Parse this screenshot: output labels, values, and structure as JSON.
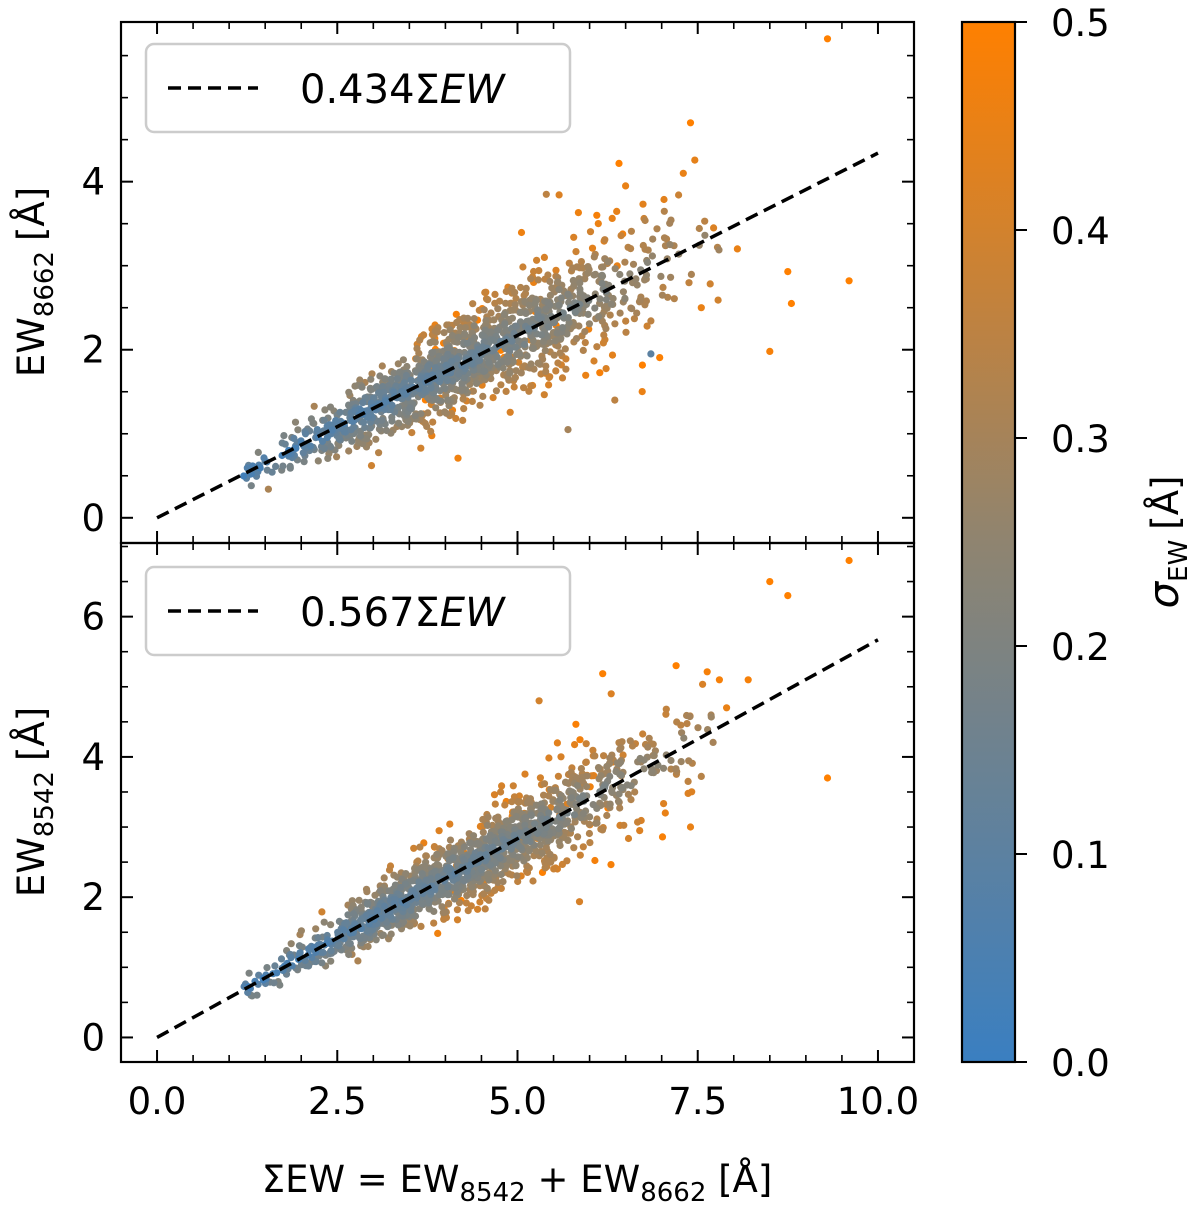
{
  "chart_data": [
    {
      "type": "scatter",
      "panel": "top",
      "ylabel": {
        "main": "EW",
        "sub": "8662",
        "unit": "[Å]"
      },
      "xlim": [
        -0.5,
        10.5
      ],
      "ylim": [
        -0.3,
        5.9
      ],
      "yticks": [
        0,
        2,
        4
      ],
      "ytick_labels": [
        "0",
        "2",
        "4"
      ],
      "grid": false,
      "legend": {
        "position": "top-left",
        "label_prefix": "0.434",
        "label_sigma": "Σ",
        "label_var": "EW"
      },
      "fit_line": {
        "slope": 0.434,
        "x": [
          0,
          10
        ],
        "style": "dashed",
        "color": "#000000"
      },
      "point_cloud": {
        "x_range": [
          1.2,
          7.8
        ],
        "relation": "y ≈ 0.434 x",
        "color_by": "sigma_EW",
        "count_rendered": 1400,
        "seed": 7
      },
      "outliers": [
        {
          "x": 9.3,
          "y": 5.7,
          "sigma": 0.5
        },
        {
          "x": 9.6,
          "y": 2.82,
          "sigma": 0.5
        },
        {
          "x": 7.4,
          "y": 4.7,
          "sigma": 0.5
        },
        {
          "x": 7.3,
          "y": 4.1,
          "sigma": 0.45
        },
        {
          "x": 8.8,
          "y": 2.55,
          "sigma": 0.5
        },
        {
          "x": 8.5,
          "y": 1.98,
          "sigma": 0.48
        },
        {
          "x": 8.75,
          "y": 2.93,
          "sigma": 0.5
        },
        {
          "x": 8.05,
          "y": 3.2,
          "sigma": 0.45
        },
        {
          "x": 7.72,
          "y": 3.45,
          "sigma": 0.42
        },
        {
          "x": 7.55,
          "y": 2.5,
          "sigma": 0.45
        },
        {
          "x": 6.5,
          "y": 3.95,
          "sigma": 0.45
        },
        {
          "x": 6.1,
          "y": 3.6,
          "sigma": 0.48
        },
        {
          "x": 5.4,
          "y": 3.85,
          "sigma": 0.35
        },
        {
          "x": 5.7,
          "y": 1.05,
          "sigma": 0.3
        },
        {
          "x": 6.85,
          "y": 1.95,
          "sigma": 0.1
        },
        {
          "x": 6.35,
          "y": 1.4,
          "sigma": 0.35
        }
      ]
    },
    {
      "type": "scatter",
      "panel": "bottom",
      "xlabel": {
        "text": "ΣEW = EW",
        "sub1": "8542",
        "plus": " + EW",
        "sub2": "8662",
        "unit": " [Å]"
      },
      "ylabel": {
        "main": "EW",
        "sub": "8542",
        "unit": "[Å]"
      },
      "xlim": [
        -0.5,
        10.5
      ],
      "ylim": [
        -0.35,
        7.05
      ],
      "xticks": [
        0.0,
        2.5,
        5.0,
        7.5,
        10.0
      ],
      "xtick_labels": [
        "0.0",
        "2.5",
        "5.0",
        "7.5",
        "10.0"
      ],
      "yticks": [
        0,
        2,
        4,
        6
      ],
      "ytick_labels": [
        "0",
        "2",
        "4",
        "6"
      ],
      "grid": false,
      "legend": {
        "position": "top-left",
        "label_prefix": "0.567",
        "label_sigma": "Σ",
        "label_var": "EW"
      },
      "fit_line": {
        "slope": 0.567,
        "x": [
          0,
          10
        ],
        "style": "dashed",
        "color": "#000000"
      },
      "point_cloud": {
        "x_range": [
          1.2,
          7.8
        ],
        "relation": "y ≈ 0.567 x",
        "color_by": "sigma_EW",
        "count_rendered": 1400,
        "seed": 13
      },
      "outliers": [
        {
          "x": 9.6,
          "y": 6.8,
          "sigma": 0.5
        },
        {
          "x": 8.5,
          "y": 6.5,
          "sigma": 0.5
        },
        {
          "x": 8.75,
          "y": 6.3,
          "sigma": 0.5
        },
        {
          "x": 9.3,
          "y": 3.7,
          "sigma": 0.5
        },
        {
          "x": 8.2,
          "y": 5.1,
          "sigma": 0.48
        },
        {
          "x": 7.9,
          "y": 4.7,
          "sigma": 0.45
        },
        {
          "x": 7.4,
          "y": 3.0,
          "sigma": 0.45
        },
        {
          "x": 7.8,
          "y": 5.1,
          "sigma": 0.48
        },
        {
          "x": 7.2,
          "y": 5.3,
          "sigma": 0.5
        },
        {
          "x": 7.05,
          "y": 3.2,
          "sigma": 0.45
        },
        {
          "x": 6.3,
          "y": 4.9,
          "sigma": 0.42
        },
        {
          "x": 5.3,
          "y": 4.8,
          "sigma": 0.4
        }
      ]
    }
  ],
  "colorbar": {
    "label_sigma": "σ",
    "label_sub": "EW",
    "label_unit": "[Å]",
    "range": [
      0.0,
      0.5
    ],
    "ticks": [
      0.0,
      0.1,
      0.2,
      0.3,
      0.4,
      0.5
    ],
    "tick_labels": [
      "0.0",
      "0.1",
      "0.2",
      "0.3",
      "0.4",
      "0.5"
    ],
    "color_low": "#3a7fc1",
    "color_mid": "#8f8470",
    "color_high": "#ff8000"
  }
}
